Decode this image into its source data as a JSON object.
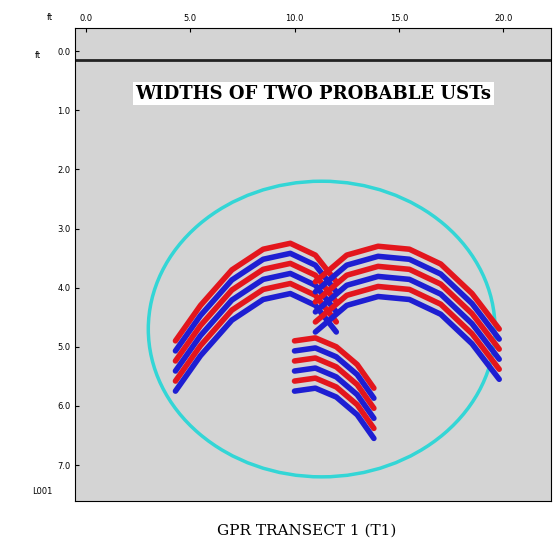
{
  "chart_data": {
    "type": "radargram",
    "title": "WIDTHS OF TWO PROBABLE USTs",
    "caption": "GPR TRANSECT 1 (T1)",
    "x_unit": "ft",
    "y_unit": "ft",
    "line_label": "L001",
    "xlim": [
      -0.5,
      22.3
    ],
    "ylim": [
      7.6,
      -0.4
    ],
    "xticks": [
      {
        "value": 0,
        "label": "0.0"
      },
      {
        "value": 5,
        "label": "5.0"
      },
      {
        "value": 10,
        "label": "10.0"
      },
      {
        "value": 15,
        "label": "15.0"
      },
      {
        "value": 20,
        "label": "20.0"
      }
    ],
    "yticks": [
      {
        "value": 0,
        "label": "0.0"
      },
      {
        "value": 1,
        "label": "1.0"
      },
      {
        "value": 2,
        "label": "2.0"
      },
      {
        "value": 3,
        "label": "3.0"
      },
      {
        "value": 4,
        "label": "4.0"
      },
      {
        "value": 5,
        "label": "5.0"
      },
      {
        "value": 6,
        "label": "6.0"
      },
      {
        "value": 7,
        "label": "7.0"
      }
    ],
    "surface_depth": 0.15,
    "colors": [
      "#e3161d",
      "#1e1ed2"
    ],
    "reflectors": [
      {
        "x": [
          4.3,
          5.5,
          7.0,
          8.5,
          9.8,
          11.0,
          12.0
        ],
        "depth": [
          4.9,
          4.3,
          3.7,
          3.35,
          3.25,
          3.45,
          3.9
        ]
      },
      {
        "x": [
          11.0,
          12.5,
          14.0,
          15.5,
          17.0,
          18.5,
          19.8
        ],
        "depth": [
          3.9,
          3.45,
          3.3,
          3.35,
          3.6,
          4.1,
          4.7
        ]
      },
      {
        "x": [
          10.0,
          11.0,
          12.0,
          13.0,
          13.8
        ],
        "depth": [
          4.9,
          4.85,
          5.0,
          5.3,
          5.7
        ]
      }
    ]
  }
}
